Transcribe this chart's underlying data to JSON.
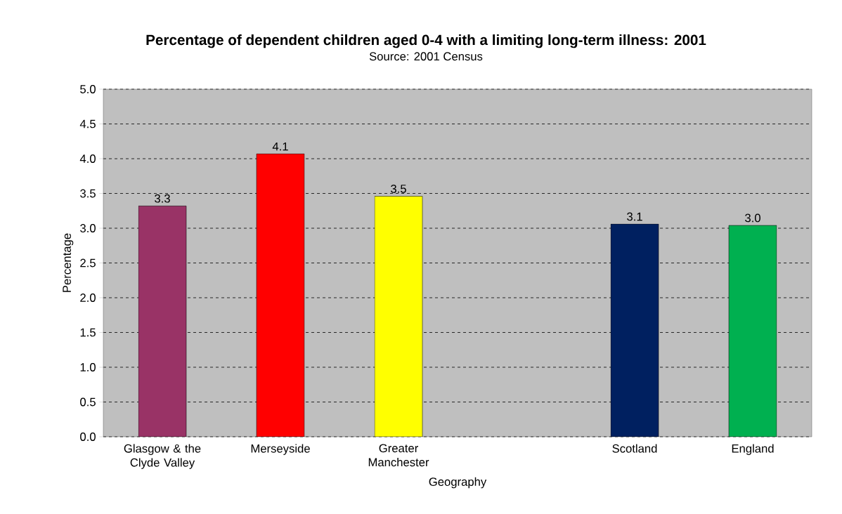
{
  "chart_data": {
    "type": "bar",
    "title": "Percentage of dependent children aged 0-4 with a limiting long-term illness: 2001",
    "subtitle": "Source: 2001 Census",
    "xlabel": "Geography",
    "ylabel": "Percentage",
    "categories": [
      "Glasgow & the Clyde Valley",
      "Merseyside",
      "Greater Manchester",
      null,
      "Scotland",
      "England"
    ],
    "values": [
      3.32,
      4.07,
      3.46,
      null,
      3.06,
      3.04
    ],
    "value_labels": [
      "3.3",
      "4.1",
      "3.5",
      null,
      "3.1",
      "3.0"
    ],
    "colors": [
      "#993366",
      "#ff0000",
      "#ffff00",
      null,
      "#002060",
      "#00b050"
    ],
    "ylim": [
      0,
      5
    ],
    "yticks": [
      {
        "value": 0,
        "label": "0.0"
      },
      {
        "value": 0.5,
        "label": "0.5"
      },
      {
        "value": 1,
        "label": "1.0"
      },
      {
        "value": 1.5,
        "label": "1.5"
      },
      {
        "value": 2,
        "label": "2.0"
      },
      {
        "value": 2.5,
        "label": "2.5"
      },
      {
        "value": 3,
        "label": "3.0"
      },
      {
        "value": 3.5,
        "label": "3.5"
      },
      {
        "value": 4,
        "label": "4.0"
      },
      {
        "value": 4.5,
        "label": "4.5"
      },
      {
        "value": 5,
        "label": "5.0"
      }
    ],
    "grid": "y"
  }
}
